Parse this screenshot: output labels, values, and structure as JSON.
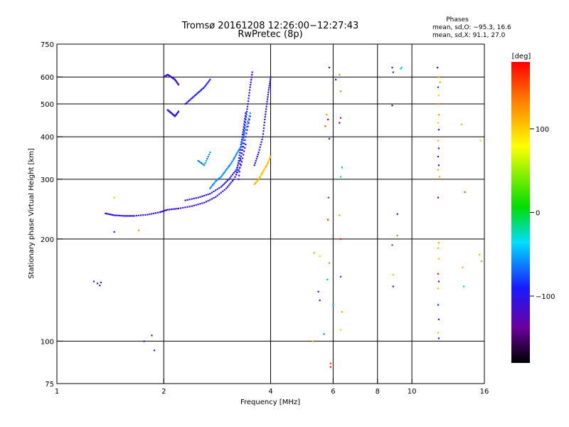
{
  "chart_data": {
    "type": "scatter",
    "title": "Tromsø 20161208 12:26:00−12:27:43",
    "subtitle": "RwPretec (8p)",
    "stats": {
      "header": "Phases",
      "line1": "mean, sd,O: −95.3, 16.6",
      "line2": "mean, sd,X:  91.1, 27.0"
    },
    "xlabel": "Frequency [MHz]",
    "ylabel": "Stationary phase Virtual Height [km]",
    "x_scale": "log",
    "y_scale": "log",
    "xlim": [
      1,
      16
    ],
    "ylim": [
      75,
      750
    ],
    "x_ticks": [
      {
        "value": 1,
        "label": "1"
      },
      {
        "value": 2,
        "label": "2"
      },
      {
        "value": 4,
        "label": "4"
      },
      {
        "value": 6,
        "label": "6"
      },
      {
        "value": 8,
        "label": "8"
      },
      {
        "value": 10,
        "label": "10"
      },
      {
        "value": 16,
        "label": "16"
      }
    ],
    "x_grid": [
      2,
      4,
      6,
      8,
      10
    ],
    "y_ticks": [
      {
        "value": 750,
        "label": "750"
      },
      {
        "value": 600,
        "label": "600"
      },
      {
        "value": 500,
        "label": "500"
      },
      {
        "value": 400,
        "label": "400"
      },
      {
        "value": 300,
        "label": "300"
      },
      {
        "value": 200,
        "label": "200"
      },
      {
        "value": 100,
        "label": "100"
      },
      {
        "value": 75,
        "label": "75"
      }
    ],
    "y_grid": [
      600,
      500,
      400,
      300,
      200,
      100
    ],
    "colorbar": {
      "unit": "[deg]",
      "range": [
        -180,
        180
      ],
      "ticks": [
        {
          "value": 100,
          "label": "100"
        },
        {
          "value": 0,
          "label": "0"
        },
        {
          "value": -100,
          "label": "−100"
        }
      ]
    },
    "traces": [
      {
        "x": [
          1.37,
          1.45,
          1.55,
          1.65,
          1.8,
          1.95,
          2.05,
          2.2,
          2.4,
          2.6,
          2.8,
          3.0,
          3.15,
          3.3,
          3.4
        ],
        "y": [
          238,
          235,
          234,
          234,
          236,
          240,
          244,
          246,
          250,
          256,
          266,
          282,
          300,
          330,
          380
        ],
        "phase": -110
      },
      {
        "x": [
          2.3,
          2.5,
          2.7,
          2.9,
          3.05,
          3.2,
          3.3,
          3.4,
          3.5
        ],
        "y": [
          260,
          265,
          272,
          285,
          300,
          320,
          350,
          400,
          460
        ],
        "phase": -100
      },
      {
        "x": [
          3.25,
          3.3,
          3.35,
          3.4,
          3.45,
          3.5,
          3.55
        ],
        "y": [
          300,
          350,
          400,
          450,
          500,
          560,
          620
        ],
        "phase": -105
      },
      {
        "x": [
          3.2,
          3.25,
          3.3,
          3.35,
          3.4
        ],
        "y": [
          310,
          340,
          380,
          420,
          470
        ],
        "phase": -95
      },
      {
        "x": [
          3.6,
          3.7,
          3.8,
          3.85,
          3.9,
          3.95,
          4.0
        ],
        "y": [
          330,
          360,
          400,
          450,
          500,
          550,
          600
        ],
        "phase": -100
      },
      {
        "x": [
          2.0,
          2.05,
          2.1,
          2.15,
          2.2
        ],
        "y": [
          600,
          610,
          600,
          590,
          570
        ],
        "phase": -110
      },
      {
        "x": [
          2.05,
          2.1,
          2.15,
          2.2
        ],
        "y": [
          480,
          470,
          460,
          475
        ],
        "phase": -105
      },
      {
        "x": [
          2.3,
          2.4,
          2.5,
          2.6,
          2.7
        ],
        "y": [
          500,
          520,
          540,
          560,
          590
        ],
        "phase": -95
      },
      {
        "x": [
          2.7,
          2.8,
          2.9,
          3.0,
          3.1,
          3.2,
          3.3,
          3.4,
          3.5
        ],
        "y": [
          282,
          296,
          305,
          320,
          335,
          355,
          375,
          420,
          470
        ],
        "phase": -60
      },
      {
        "x": [
          3.6,
          3.7,
          3.8,
          3.9,
          4.0
        ],
        "y": [
          290,
          300,
          315,
          330,
          350
        ],
        "phase": 105
      },
      {
        "x": [
          2.5,
          2.6,
          2.7
        ],
        "y": [
          340,
          330,
          360
        ],
        "phase": -60
      }
    ],
    "points": [
      {
        "x": 1.27,
        "y": 150,
        "phase": -110
      },
      {
        "x": 1.3,
        "y": 148,
        "phase": -110
      },
      {
        "x": 1.32,
        "y": 146,
        "phase": -110
      },
      {
        "x": 1.33,
        "y": 149,
        "phase": -110
      },
      {
        "x": 1.45,
        "y": 265,
        "phase": 110
      },
      {
        "x": 1.45,
        "y": 210,
        "phase": -110
      },
      {
        "x": 1.7,
        "y": 212,
        "phase": 120
      },
      {
        "x": 1.76,
        "y": 100,
        "phase": -110
      },
      {
        "x": 1.85,
        "y": 104,
        "phase": -110
      },
      {
        "x": 1.88,
        "y": 94,
        "phase": -110
      },
      {
        "x": 5.3,
        "y": 182,
        "phase": 40
      },
      {
        "x": 5.5,
        "y": 178,
        "phase": 100
      },
      {
        "x": 5.25,
        "y": 100,
        "phase": 120
      },
      {
        "x": 5.45,
        "y": 140,
        "phase": -100
      },
      {
        "x": 5.5,
        "y": 132,
        "phase": -110
      },
      {
        "x": 5.65,
        "y": 105,
        "phase": -60
      },
      {
        "x": 5.75,
        "y": 465,
        "phase": 120
      },
      {
        "x": 5.8,
        "y": 450,
        "phase": 180
      },
      {
        "x": 5.7,
        "y": 430,
        "phase": 150
      },
      {
        "x": 5.85,
        "y": 640,
        "phase": -110
      },
      {
        "x": 5.85,
        "y": 395,
        "phase": -110
      },
      {
        "x": 5.82,
        "y": 265,
        "phase": 170
      },
      {
        "x": 5.8,
        "y": 228,
        "phase": 160
      },
      {
        "x": 5.85,
        "y": 170,
        "phase": 130
      },
      {
        "x": 5.78,
        "y": 152,
        "phase": -50
      },
      {
        "x": 5.9,
        "y": 86,
        "phase": 160
      },
      {
        "x": 5.9,
        "y": 84,
        "phase": 170
      },
      {
        "x": 6.0,
        "y": 128,
        "phase": -50
      },
      {
        "x": 6.1,
        "y": 590,
        "phase": -100
      },
      {
        "x": 6.25,
        "y": 610,
        "phase": 130
      },
      {
        "x": 6.3,
        "y": 545,
        "phase": 130
      },
      {
        "x": 6.3,
        "y": 455,
        "phase": 180
      },
      {
        "x": 6.25,
        "y": 440,
        "phase": -110
      },
      {
        "x": 6.35,
        "y": 325,
        "phase": -50
      },
      {
        "x": 6.3,
        "y": 305,
        "phase": -40
      },
      {
        "x": 6.25,
        "y": 235,
        "phase": 120
      },
      {
        "x": 6.3,
        "y": 200,
        "phase": 170
      },
      {
        "x": 6.3,
        "y": 155,
        "phase": -80
      },
      {
        "x": 6.35,
        "y": 122,
        "phase": 120
      },
      {
        "x": 6.3,
        "y": 108,
        "phase": 100
      },
      {
        "x": 8.8,
        "y": 640,
        "phase": -110
      },
      {
        "x": 8.85,
        "y": 620,
        "phase": -110
      },
      {
        "x": 9.35,
        "y": 640,
        "phase": -30
      },
      {
        "x": 9.3,
        "y": 635,
        "phase": -40
      },
      {
        "x": 8.8,
        "y": 495,
        "phase": -110
      },
      {
        "x": 9.1,
        "y": 237,
        "phase": -130
      },
      {
        "x": 9.1,
        "y": 205,
        "phase": 130
      },
      {
        "x": 8.8,
        "y": 192,
        "phase": -70
      },
      {
        "x": 8.85,
        "y": 157,
        "phase": 110
      },
      {
        "x": 8.85,
        "y": 145,
        "phase": -110
      },
      {
        "x": 11.8,
        "y": 640,
        "phase": -110
      },
      {
        "x": 11.9,
        "y": 600,
        "phase": 120
      },
      {
        "x": 12.0,
        "y": 580,
        "phase": 110
      },
      {
        "x": 11.85,
        "y": 560,
        "phase": -80
      },
      {
        "x": 11.9,
        "y": 530,
        "phase": 100
      },
      {
        "x": 11.85,
        "y": 500,
        "phase": 130
      },
      {
        "x": 11.9,
        "y": 465,
        "phase": 120
      },
      {
        "x": 11.85,
        "y": 440,
        "phase": 100
      },
      {
        "x": 11.9,
        "y": 420,
        "phase": -110
      },
      {
        "x": 11.85,
        "y": 390,
        "phase": 110
      },
      {
        "x": 11.9,
        "y": 370,
        "phase": -100
      },
      {
        "x": 11.85,
        "y": 350,
        "phase": -110
      },
      {
        "x": 11.9,
        "y": 330,
        "phase": -120
      },
      {
        "x": 11.85,
        "y": 320,
        "phase": 110
      },
      {
        "x": 11.95,
        "y": 305,
        "phase": 110
      },
      {
        "x": 11.85,
        "y": 265,
        "phase": -100
      },
      {
        "x": 11.9,
        "y": 195,
        "phase": 120
      },
      {
        "x": 11.85,
        "y": 188,
        "phase": 110
      },
      {
        "x": 11.9,
        "y": 175,
        "phase": 110
      },
      {
        "x": 11.85,
        "y": 158,
        "phase": 170
      },
      {
        "x": 11.9,
        "y": 150,
        "phase": -120
      },
      {
        "x": 11.85,
        "y": 143,
        "phase": 110
      },
      {
        "x": 11.85,
        "y": 128,
        "phase": -80
      },
      {
        "x": 11.9,
        "y": 116,
        "phase": -110
      },
      {
        "x": 11.85,
        "y": 106,
        "phase": 110
      },
      {
        "x": 11.9,
        "y": 102,
        "phase": -100
      },
      {
        "x": 13.8,
        "y": 435,
        "phase": 110
      },
      {
        "x": 14.1,
        "y": 275,
        "phase": 150
      },
      {
        "x": 13.9,
        "y": 165,
        "phase": 110
      },
      {
        "x": 14.0,
        "y": 145,
        "phase": -40
      },
      {
        "x": 15.6,
        "y": 390,
        "phase": 100
      },
      {
        "x": 15.5,
        "y": 180,
        "phase": 110
      },
      {
        "x": 15.7,
        "y": 172,
        "phase": 120
      }
    ]
  }
}
